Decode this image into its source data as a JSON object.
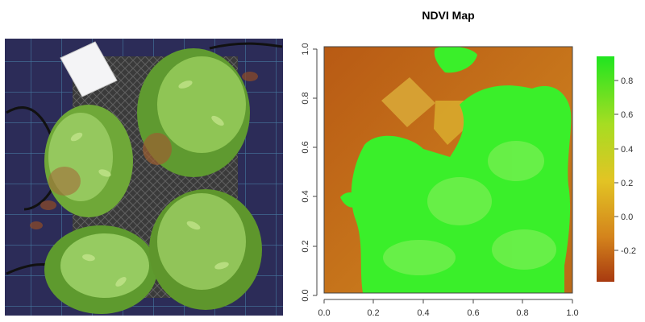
{
  "ndvi_map": {
    "title": "NDVI Map",
    "x_ticks": [
      "0.0",
      "0.2",
      "0.4",
      "0.6",
      "0.8",
      "1.0"
    ],
    "y_ticks": [
      "0.0",
      "0.2",
      "0.4",
      "0.6",
      "0.8",
      "1.0"
    ],
    "colorbar": {
      "ticks": [
        "0.8",
        "0.6",
        "0.4",
        "0.2",
        "0.0",
        "-0.2"
      ],
      "colors": [
        "#2ee52e",
        "#c8df20",
        "#e0c020",
        "#d28a18",
        "#b04010"
      ]
    }
  },
  "colors": {
    "vegetation_green": "#3aef2a",
    "soil_orange": "#c77a1c",
    "mat_blue": "#2c2c58",
    "leaf_green": "#8dc860"
  }
}
